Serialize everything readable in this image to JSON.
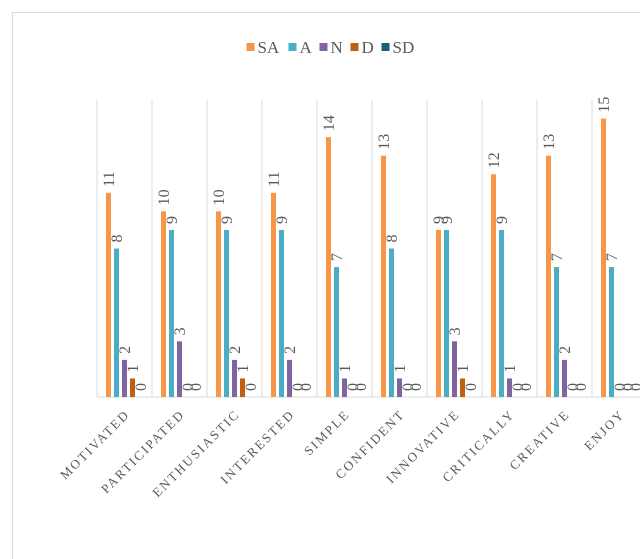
{
  "chart_data": {
    "type": "bar",
    "categories": [
      "MOTIVATED",
      "PARTICIPATED",
      "ENTHUSIASTIC",
      "INTERESTED",
      "SIMPLE",
      "CONFIDENT",
      "INNOVATIVE",
      "CRITICALLY",
      "CREATIVE",
      "ENJOY"
    ],
    "series": [
      {
        "name": "SA",
        "color": "#f79646",
        "values": [
          11,
          10,
          10,
          11,
          14,
          13,
          9,
          12,
          13,
          15
        ]
      },
      {
        "name": "A",
        "color": "#4bacc6",
        "values": [
          8,
          9,
          9,
          9,
          7,
          8,
          9,
          9,
          7,
          7
        ]
      },
      {
        "name": "N",
        "color": "#8064a2",
        "values": [
          2,
          3,
          2,
          2,
          1,
          1,
          3,
          1,
          2,
          0
        ]
      },
      {
        "name": "D",
        "color": "#c0600f",
        "values": [
          1,
          0,
          1,
          0,
          0,
          0,
          1,
          0,
          0,
          0
        ]
      },
      {
        "name": "SD",
        "color": "#1f5f7a",
        "values": [
          0,
          0,
          0,
          0,
          0,
          0,
          0,
          0,
          0,
          0
        ]
      }
    ],
    "ylim": [
      0,
      16
    ],
    "legend": "top",
    "grid": true
  }
}
